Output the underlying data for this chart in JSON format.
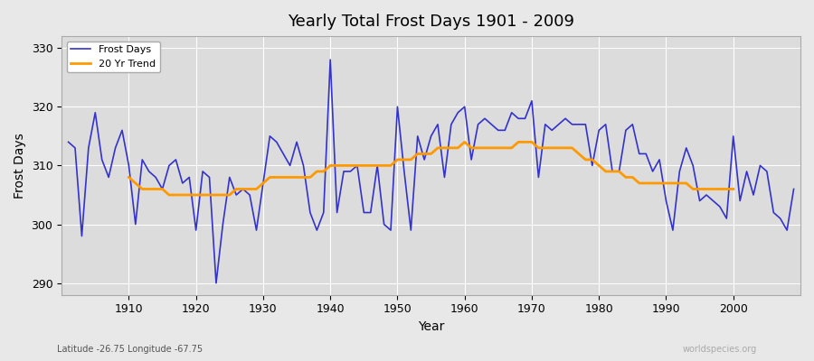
{
  "title": "Yearly Total Frost Days 1901 - 2009",
  "xlabel": "Year",
  "ylabel": "Frost Days",
  "years": [
    1901,
    1902,
    1903,
    1904,
    1905,
    1906,
    1907,
    1908,
    1909,
    1910,
    1911,
    1912,
    1913,
    1914,
    1915,
    1916,
    1917,
    1918,
    1919,
    1920,
    1921,
    1922,
    1923,
    1924,
    1925,
    1926,
    1927,
    1928,
    1929,
    1930,
    1931,
    1932,
    1933,
    1934,
    1935,
    1936,
    1937,
    1938,
    1939,
    1940,
    1941,
    1942,
    1943,
    1944,
    1945,
    1946,
    1947,
    1948,
    1949,
    1950,
    1951,
    1952,
    1953,
    1954,
    1955,
    1956,
    1957,
    1958,
    1959,
    1960,
    1961,
    1962,
    1963,
    1964,
    1965,
    1966,
    1967,
    1968,
    1969,
    1970,
    1971,
    1972,
    1973,
    1974,
    1975,
    1976,
    1977,
    1978,
    1979,
    1980,
    1981,
    1982,
    1983,
    1984,
    1985,
    1986,
    1987,
    1988,
    1989,
    1990,
    1991,
    1992,
    1993,
    1994,
    1995,
    1996,
    1997,
    1998,
    1999,
    2000,
    2001,
    2002,
    2003,
    2004,
    2005,
    2006,
    2007,
    2008,
    2009
  ],
  "frost_days": [
    314,
    313,
    298,
    313,
    319,
    311,
    308,
    313,
    316,
    310,
    300,
    311,
    309,
    308,
    306,
    310,
    311,
    307,
    308,
    299,
    309,
    308,
    290,
    300,
    308,
    305,
    306,
    305,
    299,
    307,
    315,
    314,
    312,
    310,
    314,
    310,
    302,
    299,
    302,
    328,
    302,
    309,
    309,
    310,
    302,
    302,
    310,
    300,
    299,
    320,
    309,
    299,
    315,
    311,
    315,
    317,
    308,
    317,
    319,
    320,
    311,
    317,
    318,
    317,
    316,
    316,
    319,
    318,
    318,
    321,
    308,
    317,
    316,
    317,
    318,
    317,
    317,
    317,
    310,
    316,
    317,
    309,
    309,
    316,
    317,
    312,
    312,
    309,
    311,
    304,
    299,
    309,
    313,
    310,
    304,
    305,
    304,
    303,
    301,
    315,
    304,
    309,
    305,
    310,
    309,
    302,
    301,
    299,
    306
  ],
  "trend_years": [
    1910,
    1911,
    1912,
    1913,
    1914,
    1915,
    1916,
    1917,
    1918,
    1919,
    1920,
    1921,
    1922,
    1923,
    1924,
    1925,
    1926,
    1927,
    1928,
    1929,
    1930,
    1931,
    1932,
    1933,
    1934,
    1935,
    1936,
    1937,
    1938,
    1939,
    1940,
    1941,
    1942,
    1943,
    1944,
    1945,
    1946,
    1947,
    1948,
    1949,
    1950,
    1951,
    1952,
    1953,
    1954,
    1955,
    1956,
    1957,
    1958,
    1959,
    1960,
    1961,
    1962,
    1963,
    1964,
    1965,
    1966,
    1967,
    1968,
    1969,
    1970,
    1971,
    1972,
    1973,
    1974,
    1975,
    1976,
    1977,
    1978,
    1979,
    1980,
    1981,
    1982,
    1983,
    1984,
    1985,
    1986,
    1987,
    1988,
    1989,
    1990,
    1991,
    1992,
    1993,
    1994,
    1995,
    1996,
    1997,
    1998,
    1999,
    2000
  ],
  "trend_values": [
    308,
    307,
    306,
    306,
    306,
    306,
    305,
    305,
    305,
    305,
    305,
    305,
    305,
    305,
    305,
    305,
    306,
    306,
    306,
    306,
    307,
    308,
    308,
    308,
    308,
    308,
    308,
    308,
    309,
    309,
    310,
    310,
    310,
    310,
    310,
    310,
    310,
    310,
    310,
    310,
    311,
    311,
    311,
    312,
    312,
    312,
    313,
    313,
    313,
    313,
    314,
    313,
    313,
    313,
    313,
    313,
    313,
    313,
    314,
    314,
    314,
    313,
    313,
    313,
    313,
    313,
    313,
    312,
    311,
    311,
    310,
    309,
    309,
    309,
    308,
    308,
    307,
    307,
    307,
    307,
    307,
    307,
    307,
    307,
    306,
    306,
    306,
    306,
    306,
    306,
    306
  ],
  "frost_color": "#3333cc",
  "trend_color": "#ff9900",
  "bg_color": "#e8e8e8",
  "plot_bg_color": "#dcdcdc",
  "ylim": [
    288,
    332
  ],
  "yticks": [
    290,
    300,
    310,
    320,
    330
  ],
  "grid_color": "#ffffff",
  "subtitle": "Latitude -26.75 Longitude -67.75",
  "watermark": "worldspecies.org"
}
